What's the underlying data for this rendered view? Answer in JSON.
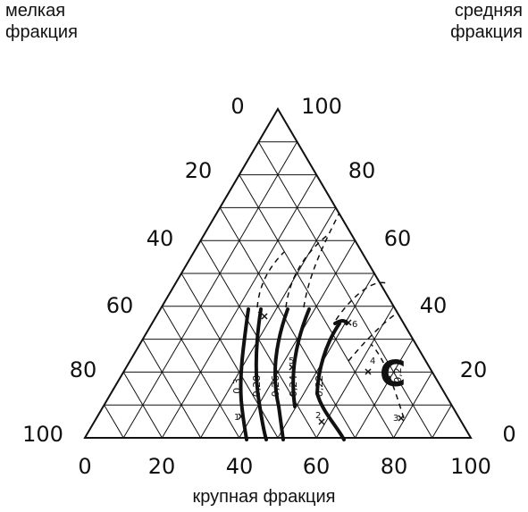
{
  "labels": {
    "fine": [
      "мелкая",
      "фракция"
    ],
    "medium": [
      "средняя",
      "фракция"
    ],
    "coarse": "крупная фракция"
  },
  "ticks": {
    "bottom": [
      "0",
      "20",
      "40",
      "60",
      "80",
      "100"
    ],
    "left": [
      "0",
      "20",
      "40",
      "60",
      "80",
      "100"
    ],
    "right": [
      "100",
      "80",
      "60",
      "40",
      "20",
      "0"
    ]
  },
  "curves": [
    "0,3",
    "0,28",
    "0,26",
    "0,24",
    "0,22",
    "0,2"
  ],
  "points": [
    "1",
    "2",
    "3",
    "4",
    "5",
    "6",
    "7"
  ],
  "region_label": "C",
  "colors": {
    "ink": "#111111"
  }
}
